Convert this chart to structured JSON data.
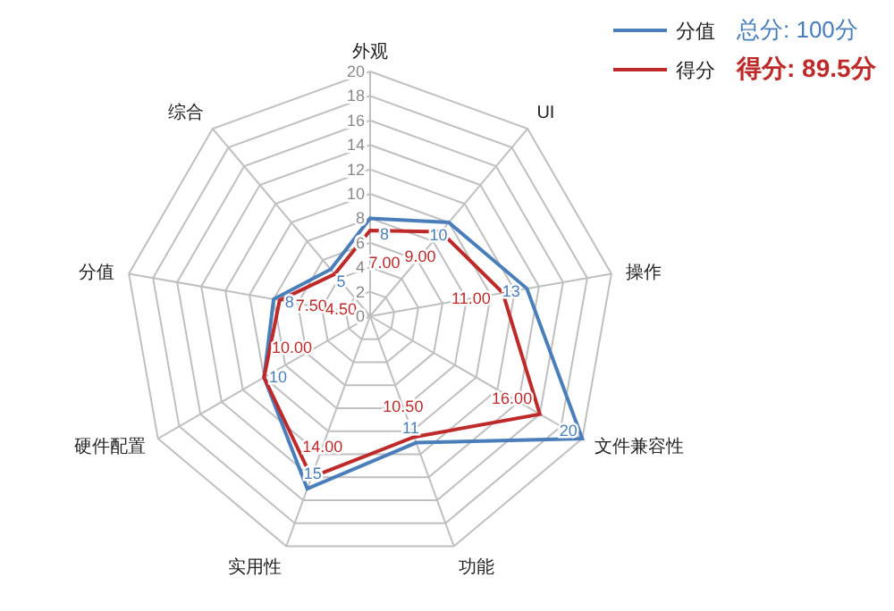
{
  "chart_data": {
    "type": "radar",
    "categories": [
      "外观",
      "UI",
      "操作",
      "文件兼容性",
      "功能",
      "实用性",
      "硬件配置",
      "分值",
      "综合"
    ],
    "series": [
      {
        "name": "分值",
        "color": "#4a7ebb",
        "values": [
          8,
          10,
          13,
          20,
          11,
          15,
          10,
          8,
          5
        ]
      },
      {
        "name": "得分",
        "color": "#be2a2a",
        "values": [
          7.0,
          9.0,
          11.0,
          16.0,
          10.5,
          14.0,
          10.0,
          7.5,
          4.5
        ],
        "value_labels": [
          "7.00",
          "9.00",
          "11.00",
          "16.00",
          "10.50",
          "14.00",
          "10.00",
          "7.50",
          "4.50"
        ]
      }
    ],
    "ylim": [
      0,
      20
    ],
    "yticks": [
      0,
      2,
      4,
      6,
      8,
      10,
      12,
      14,
      16,
      18,
      20
    ],
    "grid": true,
    "legend": "top right",
    "data_labels": true,
    "annotations": [
      "总分: 100分",
      "得分: 89.5分"
    ]
  }
}
